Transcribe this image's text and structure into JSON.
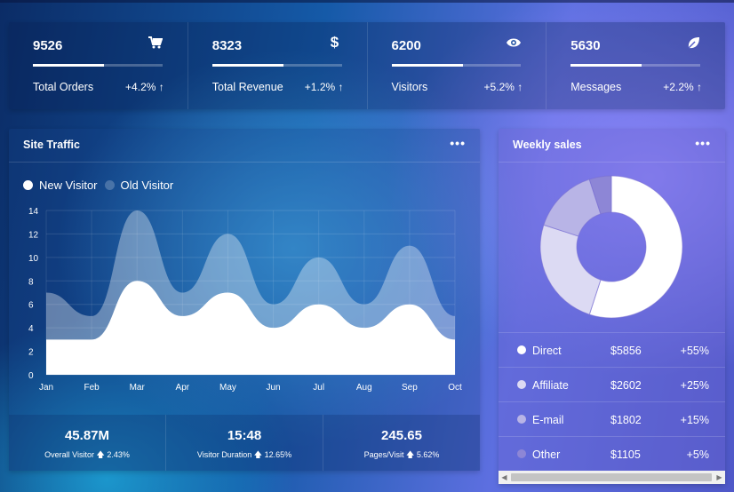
{
  "stats": [
    {
      "value": "9526",
      "label": "Total Orders",
      "change": "+4.2%",
      "icon": "cart-icon",
      "progress": 0.55
    },
    {
      "value": "8323",
      "label": "Total Revenue",
      "change": "+1.2%",
      "icon": "dollar-icon",
      "progress": 0.55
    },
    {
      "value": "6200",
      "label": "Visitors",
      "change": "+5.2%",
      "icon": "eye-icon",
      "progress": 0.55
    },
    {
      "value": "5630",
      "label": "Messages",
      "change": "+2.2%",
      "icon": "leaf-icon",
      "progress": 0.55
    }
  ],
  "traffic": {
    "title": "Site Traffic",
    "menu": "•••",
    "footer": [
      {
        "value": "45.87M",
        "label": "Overall Visitor",
        "change": "2.43%"
      },
      {
        "value": "15:48",
        "label": "Visitor Duration",
        "change": "12.65%"
      },
      {
        "value": "245.65",
        "label": "Pages/Visit",
        "change": "5.62%"
      }
    ]
  },
  "chart_data": {
    "type": "area",
    "categories": [
      "Jan",
      "Feb",
      "Mar",
      "Apr",
      "May",
      "Jun",
      "Jul",
      "Aug",
      "Sep",
      "Oct"
    ],
    "series": [
      {
        "name": "New Visitor",
        "values": [
          3,
          3,
          8,
          5,
          7,
          4,
          6,
          4,
          6,
          3
        ]
      },
      {
        "name": "Old Visitor",
        "values": [
          7,
          5,
          14,
          7,
          12,
          6,
          10,
          6,
          11,
          5
        ]
      }
    ],
    "yticks": [
      "0",
      "2",
      "4",
      "6",
      "8",
      "10",
      "12",
      "14"
    ],
    "ylim": [
      0,
      14
    ],
    "grid": true,
    "legend": "top-left",
    "colors": {
      "new": "#ffffff",
      "old": "rgba(255,255,255,0.35)"
    }
  },
  "weekly": {
    "title": "Weekly sales",
    "menu": "•••",
    "rows": [
      {
        "name": "Direct",
        "amount": "$5856",
        "pct": "+55%",
        "color": "#ffffff",
        "share": 55
      },
      {
        "name": "Affiliate",
        "amount": "$2602",
        "pct": "+25%",
        "color": "#dcdaf3",
        "share": 25
      },
      {
        "name": "E-mail",
        "amount": "$1802",
        "pct": "+15%",
        "color": "#b8b4e6",
        "share": 15
      },
      {
        "name": "Other",
        "amount": "$1105",
        "pct": "+5%",
        "color": "#8d86d6",
        "share": 5
      }
    ]
  }
}
